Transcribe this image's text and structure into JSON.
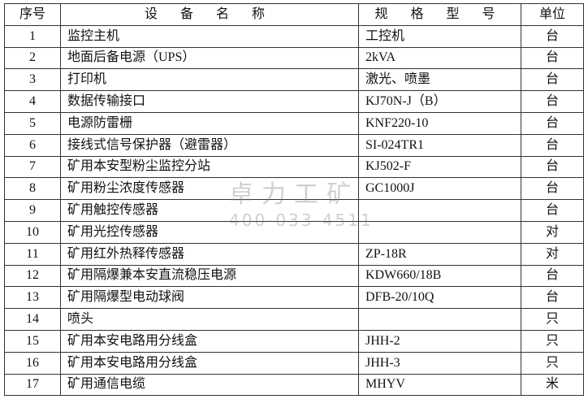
{
  "headers": {
    "no": "序号",
    "name": "设 备 名 称",
    "spec": "规 格 型 号",
    "unit": "单位"
  },
  "rows": [
    {
      "no": "1",
      "name": "监控主机",
      "spec": "工控机",
      "unit": "台"
    },
    {
      "no": "2",
      "name": "地面后备电源（UPS）",
      "spec": "2kVA",
      "unit": "台"
    },
    {
      "no": "3",
      "name": "打印机",
      "spec": "激光、喷墨",
      "unit": "台"
    },
    {
      "no": "4",
      "name": "数据传输接口",
      "spec": "KJ70N-J（B）",
      "unit": "台"
    },
    {
      "no": "5",
      "name": "电源防雷栅",
      "spec": "KNF220-10",
      "unit": "台"
    },
    {
      "no": "6",
      "name": "接线式信号保护器（避雷器）",
      "spec": "SI-024TR1",
      "unit": "台"
    },
    {
      "no": "7",
      "name": "矿用本安型粉尘监控分站",
      "spec": "KJ502-F",
      "unit": "台"
    },
    {
      "no": "8",
      "name": "矿用粉尘浓度传感器",
      "spec": "GC1000J",
      "unit": "台"
    },
    {
      "no": "9",
      "name": "矿用触控传感器",
      "spec": "",
      "unit": "台"
    },
    {
      "no": "10",
      "name": "矿用光控传感器",
      "spec": "",
      "unit": "对"
    },
    {
      "no": "11",
      "name": "矿用红外热释传感器",
      "spec": "ZP-18R",
      "unit": "对"
    },
    {
      "no": "12",
      "name": "矿用隔爆兼本安直流稳压电源",
      "spec": "KDW660/18B",
      "unit": "台"
    },
    {
      "no": "13",
      "name": "矿用隔爆型电动球阀",
      "spec": "DFB-20/10Q",
      "unit": "台"
    },
    {
      "no": "14",
      "name": "喷头",
      "spec": "",
      "unit": "只"
    },
    {
      "no": "15",
      "name": "矿用本安电路用分线盒",
      "spec": "JHH-2",
      "unit": "只"
    },
    {
      "no": "16",
      "name": "矿用本安电路用分线盒",
      "spec": "JHH-3",
      "unit": "只"
    },
    {
      "no": "17",
      "name": "矿用通信电缆",
      "spec": "MHYV",
      "unit": "米"
    }
  ],
  "watermark": {
    "name": "卓力工矿",
    "phone": "400-033-4511"
  }
}
